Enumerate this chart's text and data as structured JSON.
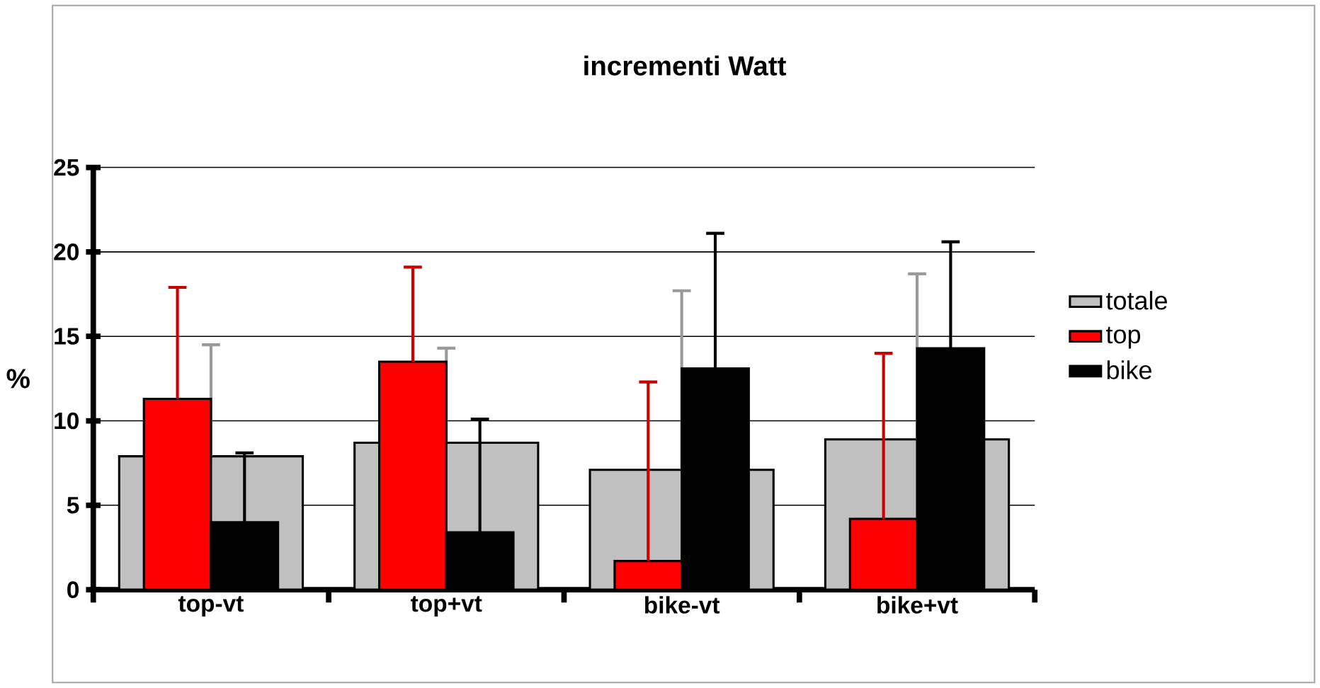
{
  "chart_data": {
    "type": "bar",
    "title": "incrementi Watt",
    "ylabel": "%",
    "categories": [
      "top-vt",
      "top+vt",
      "bike-vt",
      "bike+vt"
    ],
    "series": [
      {
        "name": "totale",
        "color": "#c0c0c0",
        "values": [
          7.9,
          8.7,
          7.1,
          8.9
        ],
        "errors": [
          [
            7.9,
            14.5
          ],
          [
            8.7,
            14.3
          ],
          [
            7.1,
            17.7
          ],
          [
            8.9,
            18.7
          ]
        ]
      },
      {
        "name": "top",
        "color": "#ff0000",
        "values": [
          11.3,
          13.5,
          1.7,
          4.2
        ],
        "errors": [
          [
            11.3,
            17.9
          ],
          [
            13.5,
            19.1
          ],
          [
            1.7,
            12.3
          ],
          [
            4.2,
            14.0
          ]
        ]
      },
      {
        "name": "bike",
        "color": "#000000",
        "values": [
          4.0,
          3.4,
          13.1,
          14.3
        ],
        "errors": [
          [
            4.0,
            8.1
          ],
          [
            3.4,
            10.1
          ],
          [
            13.1,
            21.1
          ],
          [
            14.3,
            20.6
          ]
        ]
      }
    ],
    "ylim": [
      0,
      25
    ],
    "yticks": [
      0,
      5,
      10,
      15,
      20,
      25
    ],
    "grid": "y",
    "legend": "right"
  }
}
